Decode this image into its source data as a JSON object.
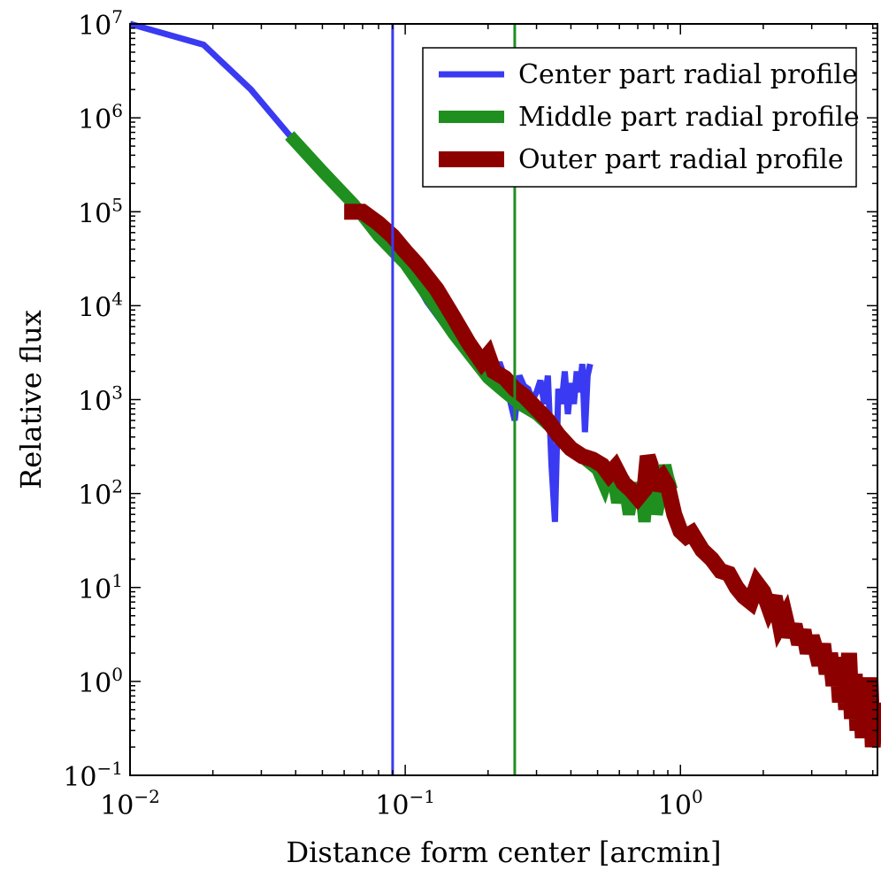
{
  "chart_data": {
    "type": "line",
    "xlabel": "Distance form center [arcmin]",
    "ylabel": "Relative flux",
    "xscale": "log",
    "yscale": "log",
    "xlim": [
      0.01,
      5.2
    ],
    "ylim": [
      0.1,
      10000000
    ],
    "grid": false,
    "legend_position": "top-right",
    "x_ticks": [
      {
        "value": 0.01,
        "base": "10",
        "exp": "−2"
      },
      {
        "value": 0.1,
        "base": "10",
        "exp": "−1"
      },
      {
        "value": 1,
        "base": "10",
        "exp": "0"
      }
    ],
    "y_ticks": [
      {
        "value": 0.1,
        "base": "10",
        "exp": "−1"
      },
      {
        "value": 1,
        "base": "10",
        "exp": "0"
      },
      {
        "value": 10,
        "base": "10",
        "exp": "1"
      },
      {
        "value": 100,
        "base": "10",
        "exp": "2"
      },
      {
        "value": 1000,
        "base": "10",
        "exp": "3"
      },
      {
        "value": 10000,
        "base": "10",
        "exp": "4"
      },
      {
        "value": 100000,
        "base": "10",
        "exp": "5"
      },
      {
        "value": 1000000,
        "base": "10",
        "exp": "6"
      },
      {
        "value": 10000000,
        "base": "10",
        "exp": "7"
      }
    ],
    "vlines": [
      {
        "x": 0.09,
        "color": "#3a3af2"
      },
      {
        "x": 0.25,
        "color": "#1f8f1f"
      }
    ],
    "series": [
      {
        "name": "Center part radial profile",
        "color": "#3a3af2",
        "x": [
          0.01,
          0.0185,
          0.0275,
          0.038,
          0.05,
          0.065,
          0.08,
          0.1,
          0.12,
          0.15,
          0.175,
          0.19,
          0.2,
          0.21,
          0.22,
          0.23,
          0.24,
          0.25,
          0.26,
          0.27,
          0.28,
          0.29,
          0.3,
          0.31,
          0.32,
          0.33,
          0.34,
          0.35,
          0.36,
          0.37,
          0.38,
          0.39,
          0.4,
          0.41,
          0.42,
          0.43,
          0.44,
          0.45,
          0.46,
          0.47
        ],
        "y": [
          10000000,
          6000000,
          2000000,
          650000,
          270000,
          120000,
          55000,
          28000,
          11000,
          4500,
          2600,
          1900,
          2200,
          1500,
          2500,
          1700,
          1000,
          600,
          1800,
          1400,
          1300,
          1000,
          1200,
          1600,
          900,
          1800,
          200,
          50,
          1300,
          900,
          2000,
          700,
          1500,
          900,
          2000,
          1200,
          2400,
          450,
          1800,
          2400
        ]
      },
      {
        "name": "Middle part radial profile",
        "color": "#1f8f1f",
        "x": [
          0.038,
          0.05,
          0.065,
          0.08,
          0.1,
          0.12,
          0.15,
          0.175,
          0.2,
          0.23,
          0.26,
          0.3,
          0.34,
          0.38,
          0.42,
          0.46,
          0.5,
          0.53,
          0.56,
          0.59,
          0.62,
          0.65,
          0.68,
          0.7,
          0.72,
          0.74,
          0.76,
          0.78,
          0.8,
          0.82,
          0.85,
          0.88,
          0.9,
          0.93
        ],
        "y": [
          650000,
          270000,
          120000,
          55000,
          28000,
          13000,
          5000,
          2800,
          1700,
          1200,
          900,
          700,
          500,
          350,
          280,
          220,
          180,
          120,
          200,
          80,
          150,
          60,
          130,
          80,
          110,
          50,
          120,
          70,
          140,
          60,
          100,
          200,
          150,
          110
        ]
      },
      {
        "name": "Outer part radial profile",
        "color": "#8c0000",
        "x": [
          0.06,
          0.07,
          0.08,
          0.09,
          0.1,
          0.11,
          0.13,
          0.15,
          0.17,
          0.19,
          0.2,
          0.21,
          0.23,
          0.25,
          0.27,
          0.3,
          0.33,
          0.36,
          0.4,
          0.44,
          0.48,
          0.52,
          0.55,
          0.58,
          0.62,
          0.66,
          0.7,
          0.74,
          0.76,
          0.78,
          0.8,
          0.82,
          0.86,
          0.9,
          0.95,
          1.0,
          1.05,
          1.1,
          1.2,
          1.3,
          1.4,
          1.5,
          1.6,
          1.7,
          1.8,
          1.9,
          2.0,
          2.1,
          2.2,
          2.3,
          2.4,
          2.5,
          2.6,
          2.7,
          2.8,
          2.9,
          3.0,
          3.1,
          3.2,
          3.3,
          3.4,
          3.5,
          3.6,
          3.7,
          3.8,
          3.9,
          4.0,
          4.1,
          4.2,
          4.3,
          4.4,
          4.5,
          4.6,
          4.7,
          4.8,
          4.9,
          5.0,
          5.1
        ],
        "y": [
          100000,
          100000,
          75000,
          55000,
          38000,
          28000,
          15000,
          7500,
          4000,
          2500,
          3000,
          2000,
          1700,
          1300,
          1100,
          800,
          600,
          420,
          300,
          250,
          230,
          200,
          160,
          190,
          130,
          110,
          90,
          110,
          250,
          200,
          110,
          130,
          150,
          120,
          60,
          40,
          35,
          38,
          25,
          20,
          15,
          14,
          10,
          8,
          7,
          11,
          9,
          6,
          8,
          4,
          5,
          3,
          4,
          2.5,
          3.5,
          2,
          3,
          2.2,
          1.5,
          2.5,
          1.2,
          2,
          0.9,
          1.8,
          0.6,
          1.5,
          0.5,
          2,
          0.4,
          1.2,
          0.3,
          1,
          0.25,
          0.8,
          0.35,
          1.1,
          0.2,
          0.6
        ]
      }
    ]
  }
}
